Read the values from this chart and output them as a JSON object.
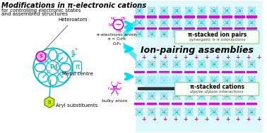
{
  "title_line1": "Modifications in π-electronic cations",
  "title_line2": "for controlling electronic states",
  "title_line3": "and assembled structures",
  "label_heteroatom": "Heteroatom",
  "label_metal": "Metal centre",
  "label_aryl": "Aryl substituents",
  "label_pi_anion": "π-electronic anion",
  "label_pi_eq": "π = C₆H₅",
  "label_c6f5": "C₆F₅",
  "label_bulky": "bulky anion",
  "label_ion_pairing": "Ion-pairing assemblies",
  "label_pi_stacked_ion": "π-stacked ion pairs",
  "label_synergetic": "synergetic π–π interactions",
  "label_pi_stacked_cations": "π-stacked cations",
  "label_dipole": "dipole–dipole interactions",
  "bg_color": "#ffffff",
  "teal": "#00b8c8",
  "magenta": "#cc00cc",
  "green_hex": "#aadd00",
  "cyan_arrow": "#00ddee",
  "label_color": "#222222",
  "box_edge": "#99cc99",
  "box_face": "#f5fff5"
}
